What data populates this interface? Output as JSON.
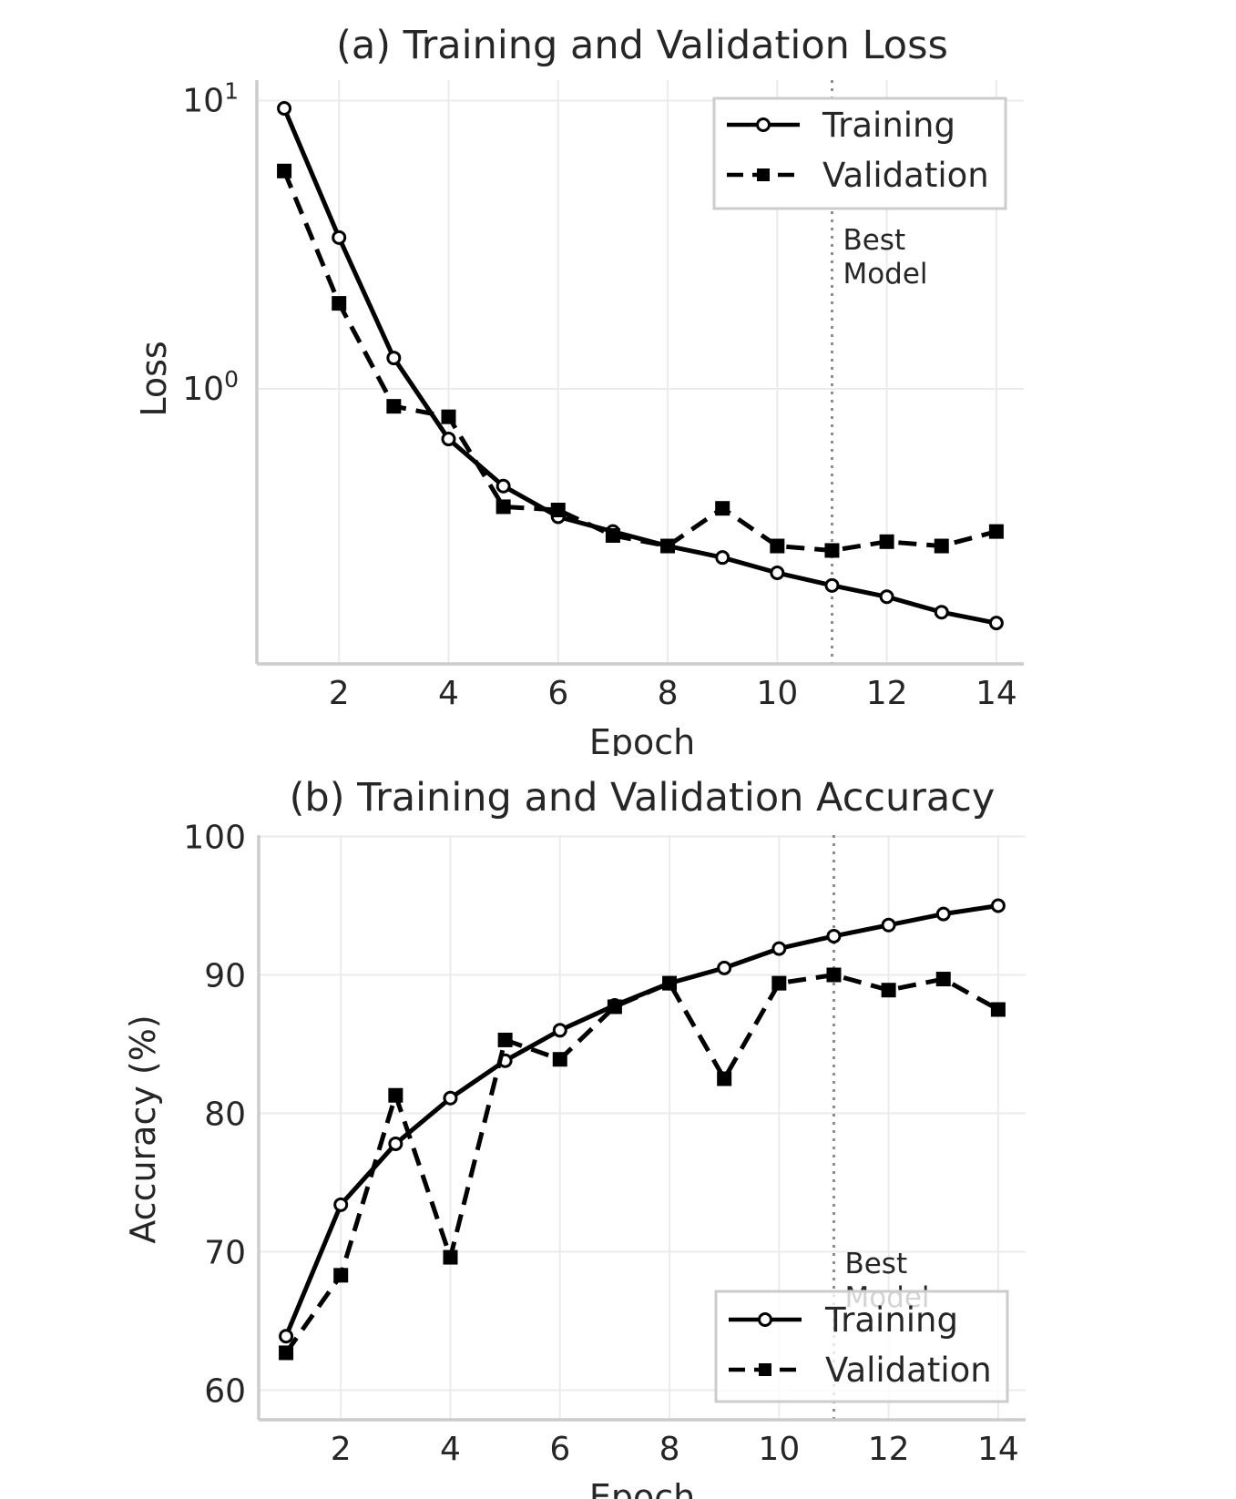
{
  "chart_data": [
    {
      "type": "line",
      "title": "(a) Training and Validation Loss",
      "xlabel": "Epoch",
      "ylabel": "Loss",
      "yscale": "log",
      "ylim": [
        0.17,
        11
      ],
      "xlim": [
        0.5,
        14.5
      ],
      "x": [
        1,
        2,
        3,
        4,
        5,
        6,
        7,
        8,
        9,
        10,
        11,
        12,
        13,
        14
      ],
      "x_ticks": [
        "2",
        "4",
        "6",
        "8",
        "10",
        "12",
        "14"
      ],
      "y_ticks": [
        {
          "base": "10",
          "exp": "1"
        },
        {
          "base": "10",
          "exp": "0"
        }
      ],
      "grid": true,
      "legend_position": "top-right",
      "series": [
        {
          "name": "Training",
          "style": "solid",
          "marker": "circle",
          "values": [
            9.4,
            3.35,
            1.28,
            0.67,
            0.46,
            0.36,
            0.32,
            0.285,
            0.26,
            0.23,
            0.208,
            0.19,
            0.168,
            0.154
          ]
        },
        {
          "name": "Validation",
          "style": "dashed",
          "marker": "square",
          "values": [
            5.7,
            1.98,
            0.87,
            0.8,
            0.39,
            0.38,
            0.31,
            0.285,
            0.385,
            0.285,
            0.275,
            0.295,
            0.285,
            0.32
          ]
        }
      ],
      "annotation": {
        "x": 11,
        "lines": [
          "Best",
          "Model"
        ]
      }
    },
    {
      "type": "line",
      "title": "(b) Training and Validation Accuracy",
      "xlabel": "Epoch",
      "ylabel": "Accuracy (%)",
      "yscale": "linear",
      "ylim": [
        57.8,
        100
      ],
      "xlim": [
        0.5,
        14.5
      ],
      "x": [
        1,
        2,
        3,
        4,
        5,
        6,
        7,
        8,
        9,
        10,
        11,
        12,
        13,
        14
      ],
      "x_ticks": [
        "2",
        "4",
        "6",
        "8",
        "10",
        "12",
        "14"
      ],
      "y_ticks": [
        "60",
        "70",
        "80",
        "90",
        "100"
      ],
      "grid": true,
      "legend_position": "bottom-right",
      "series": [
        {
          "name": "Training",
          "style": "solid",
          "marker": "circle",
          "values": [
            63.9,
            73.4,
            77.8,
            81.1,
            83.8,
            86.0,
            87.8,
            89.4,
            90.5,
            91.9,
            92.8,
            93.6,
            94.4,
            95.0
          ]
        },
        {
          "name": "Validation",
          "style": "dashed",
          "marker": "square",
          "values": [
            62.7,
            68.3,
            81.3,
            69.6,
            85.3,
            83.9,
            87.7,
            89.4,
            82.5,
            89.4,
            90.0,
            88.9,
            89.7,
            87.5
          ]
        }
      ],
      "annotation": {
        "x": 11,
        "lines": [
          "Best",
          "Model"
        ]
      }
    }
  ]
}
